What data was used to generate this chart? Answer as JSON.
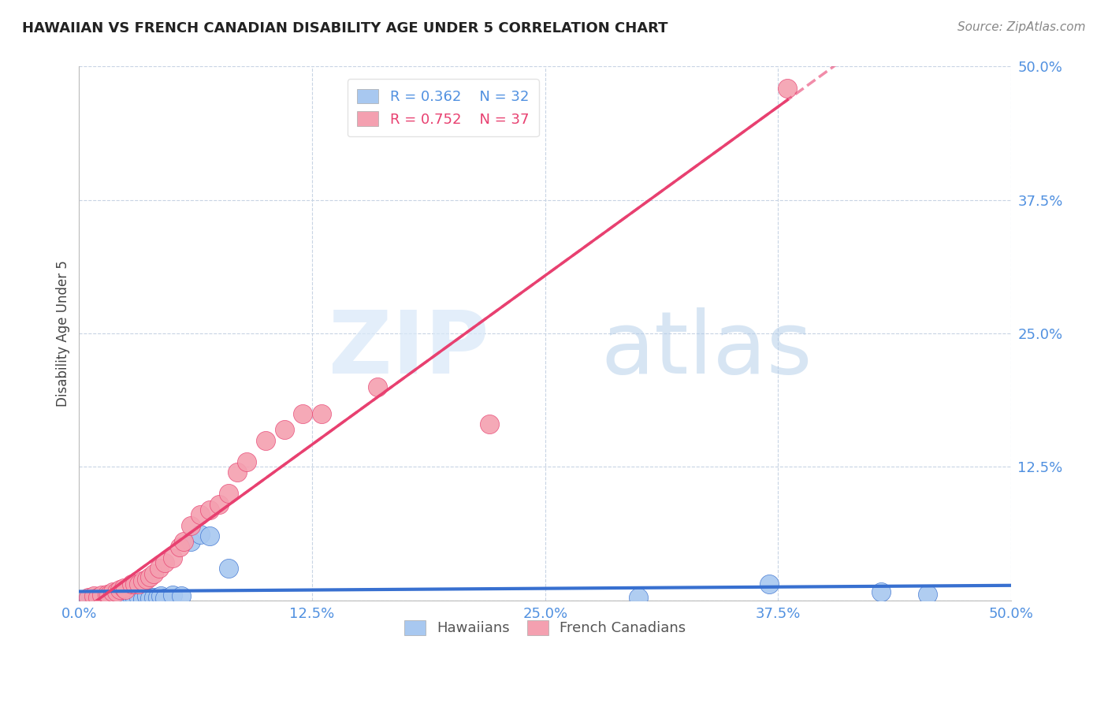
{
  "title": "HAWAIIAN VS FRENCH CANADIAN DISABILITY AGE UNDER 5 CORRELATION CHART",
  "source": "Source: ZipAtlas.com",
  "ylabel": "Disability Age Under 5",
  "xlim": [
    0.0,
    0.5
  ],
  "ylim": [
    0.0,
    0.5
  ],
  "xticks": [
    0.0,
    0.125,
    0.25,
    0.375,
    0.5
  ],
  "yticks": [
    0.0,
    0.125,
    0.25,
    0.375,
    0.5
  ],
  "xtick_labels": [
    "0.0%",
    "12.5%",
    "25.0%",
    "37.5%",
    "50.0%"
  ],
  "ytick_labels": [
    "",
    "12.5%",
    "25.0%",
    "37.5%",
    "50.0%"
  ],
  "hawaiian_R": 0.362,
  "hawaiian_N": 32,
  "french_R": 0.752,
  "french_N": 37,
  "hawaiian_color": "#a8c8f0",
  "french_color": "#f4a0b0",
  "hawaiian_line_color": "#3870d0",
  "french_line_color": "#e84070",
  "grid_color": "#c8d4e4",
  "background_color": "#ffffff",
  "tick_color": "#5090e0",
  "hawaiian_x": [
    0.005,
    0.008,
    0.01,
    0.012,
    0.015,
    0.016,
    0.018,
    0.02,
    0.022,
    0.024,
    0.025,
    0.026,
    0.028,
    0.03,
    0.032,
    0.034,
    0.036,
    0.038,
    0.04,
    0.042,
    0.044,
    0.046,
    0.05,
    0.055,
    0.06,
    0.065,
    0.07,
    0.08,
    0.3,
    0.37,
    0.43,
    0.455
  ],
  "hawaiian_y": [
    0.002,
    0.0,
    0.002,
    0.0,
    0.002,
    0.002,
    0.0,
    0.004,
    0.002,
    0.0,
    0.003,
    0.002,
    0.004,
    0.002,
    0.003,
    0.001,
    0.004,
    0.002,
    0.003,
    0.003,
    0.004,
    0.002,
    0.005,
    0.004,
    0.055,
    0.062,
    0.06,
    0.03,
    0.003,
    0.015,
    0.008,
    0.006
  ],
  "french_x": [
    0.005,
    0.008,
    0.01,
    0.012,
    0.015,
    0.016,
    0.018,
    0.02,
    0.022,
    0.024,
    0.025,
    0.028,
    0.03,
    0.032,
    0.034,
    0.036,
    0.038,
    0.04,
    0.043,
    0.046,
    0.05,
    0.054,
    0.056,
    0.06,
    0.065,
    0.07,
    0.075,
    0.08,
    0.085,
    0.09,
    0.1,
    0.11,
    0.12,
    0.13,
    0.16,
    0.22,
    0.38
  ],
  "french_y": [
    0.003,
    0.004,
    0.003,
    0.005,
    0.006,
    0.005,
    0.008,
    0.008,
    0.01,
    0.012,
    0.01,
    0.015,
    0.015,
    0.015,
    0.018,
    0.02,
    0.022,
    0.025,
    0.03,
    0.035,
    0.04,
    0.05,
    0.055,
    0.07,
    0.08,
    0.085,
    0.09,
    0.1,
    0.12,
    0.13,
    0.15,
    0.16,
    0.175,
    0.175,
    0.2,
    0.165,
    0.48
  ]
}
